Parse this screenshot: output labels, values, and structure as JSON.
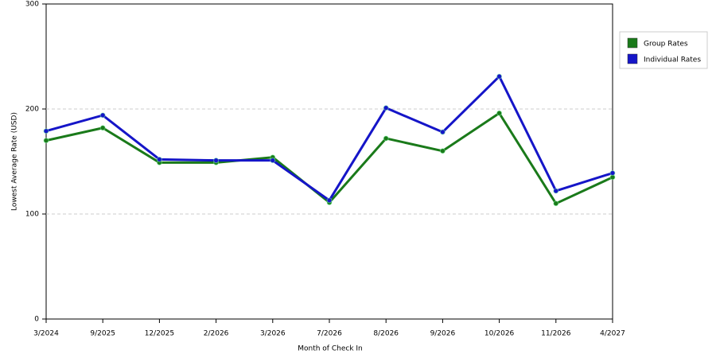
{
  "chart_data": {
    "type": "line",
    "x_label": "Month of Check In",
    "y_label": "Lowest Average Rate (USD)",
    "categories": [
      "3/2024",
      "9/2025",
      "12/2025",
      "2/2026",
      "3/2026",
      "7/2026",
      "8/2026",
      "9/2026",
      "10/2026",
      "11/2026",
      "4/2027"
    ],
    "series": [
      {
        "name": "Group Rates",
        "color": "#1a7a1a",
        "values": [
          170,
          182,
          149,
          149,
          154,
          111,
          172,
          160,
          196,
          110,
          135
        ]
      },
      {
        "name": "Individual Rates",
        "color": "#1515c8",
        "values": [
          179,
          194,
          152,
          151,
          151,
          113,
          201,
          178,
          231,
          122,
          139
        ]
      }
    ],
    "ylim": [
      0,
      300
    ],
    "yticks": [
      0,
      100,
      200,
      300
    ],
    "grid": true,
    "legend": "right"
  }
}
